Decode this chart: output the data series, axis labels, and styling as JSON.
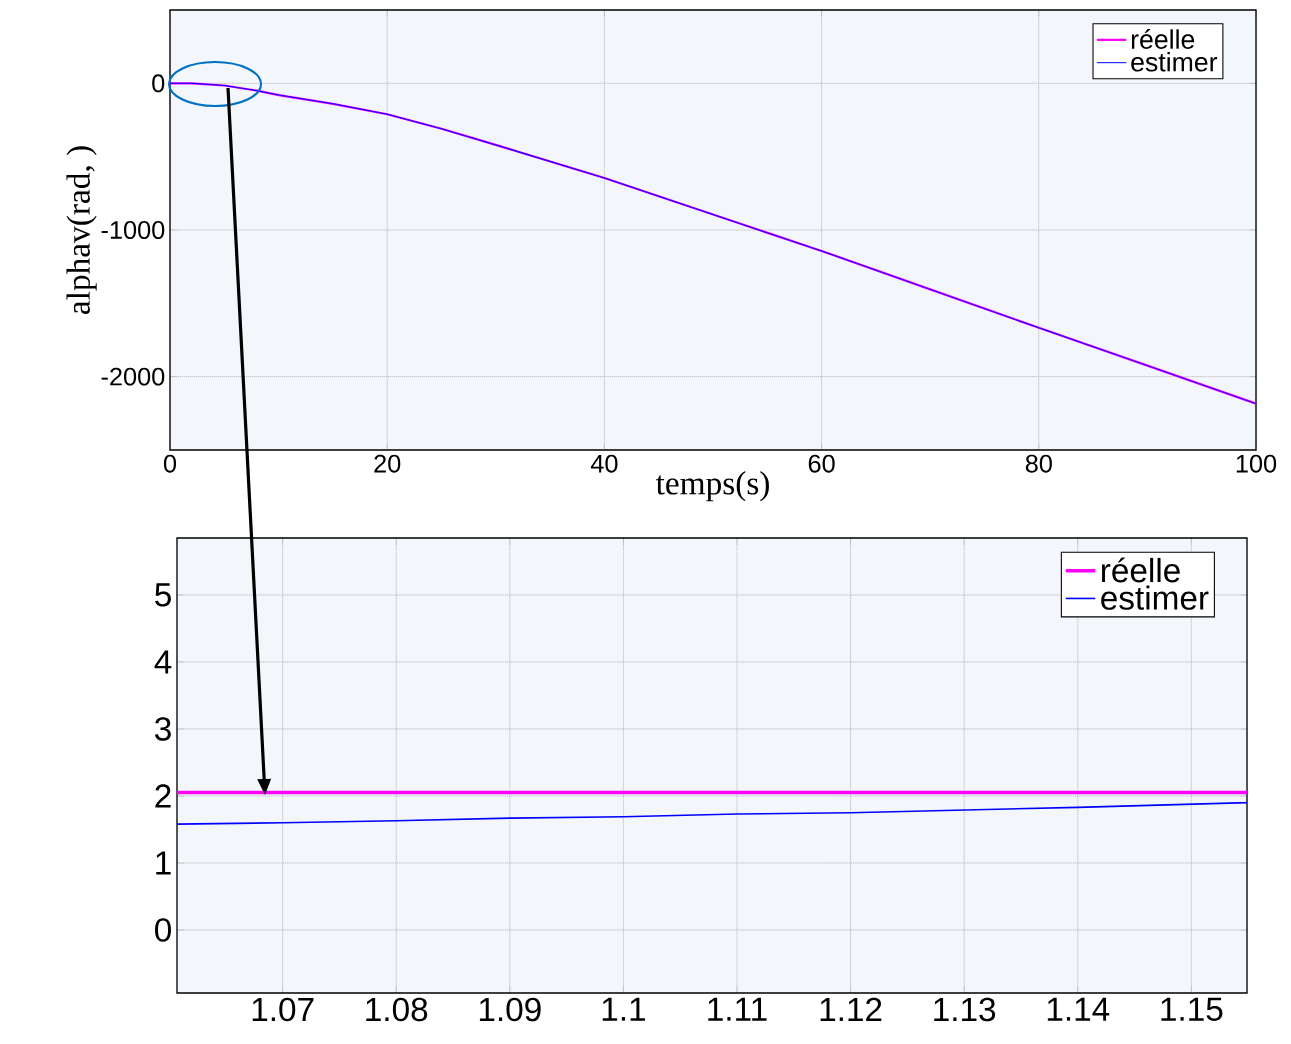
{
  "chart_data": [
    {
      "type": "line",
      "xlabel": "temps(s)",
      "ylabel": "alphav(rad, )",
      "xlim": [
        0,
        100
      ],
      "ylim": [
        -2500,
        500
      ],
      "xticks": [
        0,
        20,
        40,
        60,
        80,
        100
      ],
      "yticks": [
        -2000,
        -1000,
        0
      ],
      "grid": true,
      "legend": "top right",
      "series": [
        {
          "name": "réelle",
          "color": "#ff00ff",
          "x": [
            0,
            2,
            5,
            8,
            10,
            15,
            20,
            25,
            30,
            40,
            50,
            60,
            70,
            80,
            90,
            100
          ],
          "values": [
            0,
            0,
            -15,
            -50,
            -80,
            -140,
            -211,
            -310,
            -420,
            -646,
            -895,
            -1143,
            -1405,
            -1667,
            -1925,
            -2184
          ]
        },
        {
          "name": "estimer",
          "color": "#0000ff",
          "x": [
            0,
            2,
            5,
            8,
            10,
            15,
            20,
            25,
            30,
            40,
            50,
            60,
            70,
            80,
            90,
            100
          ],
          "values": [
            0,
            0,
            -15,
            -50,
            -80,
            -140,
            -211,
            -310,
            -420,
            -646,
            -895,
            -1143,
            -1405,
            -1667,
            -1925,
            -2184
          ]
        }
      ]
    },
    {
      "type": "line",
      "xlim": [
        1.0607,
        1.1549
      ],
      "ylim": [
        -0.94,
        5.85
      ],
      "xticks": [
        1.07,
        1.08,
        1.09,
        1.1,
        1.11,
        1.12,
        1.13,
        1.14,
        1.15
      ],
      "yticks": [
        0,
        1,
        2,
        3,
        4,
        5
      ],
      "grid": true,
      "legend": "top right",
      "series": [
        {
          "name": "réelle",
          "color": "#ff00ff",
          "x": [
            1.0607,
            1.1549
          ],
          "values": [
            2.05,
            2.05
          ]
        },
        {
          "name": "estimer",
          "color": "#0000ff",
          "x": [
            1.0607,
            1.07,
            1.08,
            1.09,
            1.1,
            1.11,
            1.12,
            1.13,
            1.14,
            1.1549
          ],
          "values": [
            1.58,
            1.6,
            1.63,
            1.67,
            1.69,
            1.73,
            1.75,
            1.79,
            1.83,
            1.9
          ]
        }
      ]
    }
  ]
}
